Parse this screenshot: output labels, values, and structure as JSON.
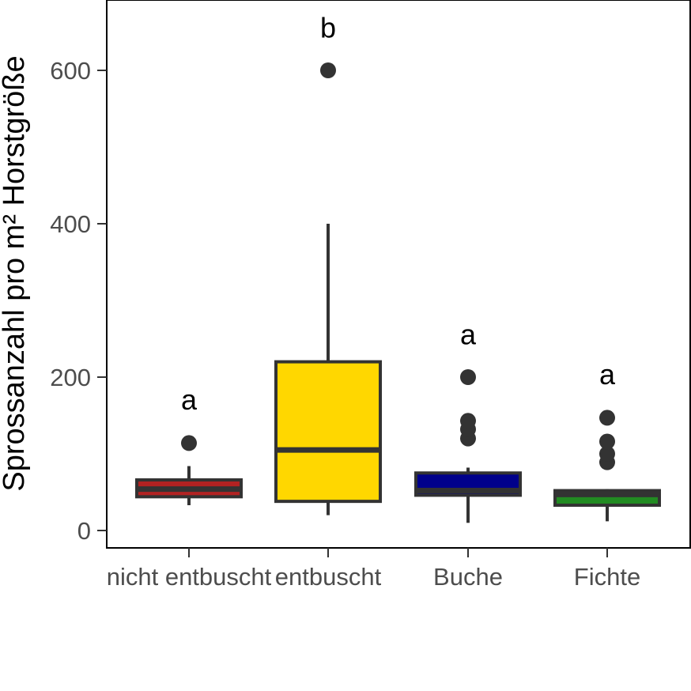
{
  "chart_data": {
    "type": "box",
    "ylabel": "Sprossanzahl pro m² Horstgröße",
    "xlabel": "",
    "ylim": [
      -22,
      690
    ],
    "yticks": [
      0,
      200,
      400,
      600
    ],
    "grid": false,
    "legend": "none",
    "categories": [
      "nicht entbuscht",
      "entbuscht",
      "Buche",
      "Fichte"
    ],
    "boxes": [
      {
        "category": "nicht entbuscht",
        "fill": "#b22222",
        "whisker_low": 33,
        "q1": 44,
        "median": 54,
        "q3": 66,
        "whisker_high": 84,
        "outliers": [
          114
        ],
        "letter": "a",
        "letter_y": 170
      },
      {
        "category": "entbuscht",
        "fill": "#ffd700",
        "whisker_low": 20,
        "q1": 38,
        "median": 105,
        "q3": 220,
        "whisker_high": 400,
        "outliers": [
          600
        ],
        "letter": "b",
        "letter_y": 655
      },
      {
        "category": "Buche",
        "fill": "#00008b",
        "whisker_low": 10,
        "q1": 46,
        "median": 52,
        "q3": 75,
        "whisker_high": 82,
        "outliers": [
          120,
          132,
          143,
          200
        ],
        "letter": "a",
        "letter_y": 255
      },
      {
        "category": "Fichte",
        "fill": "#228b22",
        "whisker_low": 12,
        "q1": 33,
        "median": 47,
        "q3": 52,
        "whisker_high": 54,
        "outliers": [
          89,
          100,
          116,
          147
        ],
        "letter": "a",
        "letter_y": 203
      }
    ],
    "colors": {
      "outline": "#333333",
      "tick_label": "#4d4d4d",
      "panel_border": "#000000"
    }
  }
}
